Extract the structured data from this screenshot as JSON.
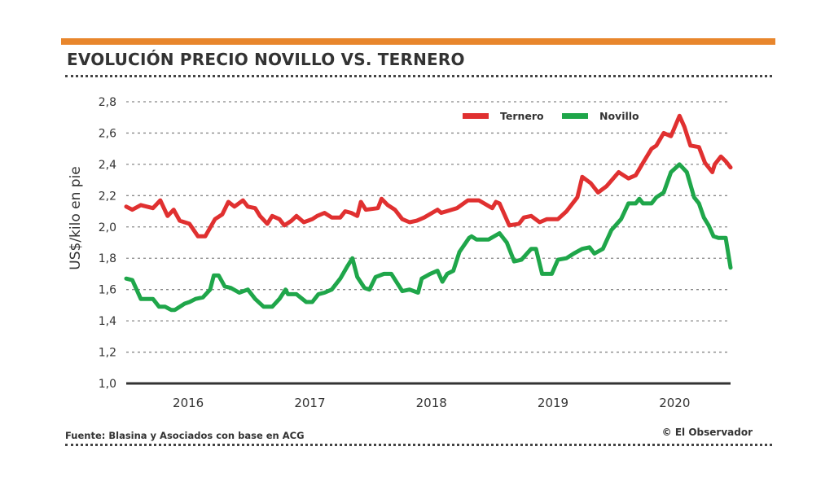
{
  "header": {
    "title": "EVOLUCIÓN PRECIO NOVILLO VS. TERNERO",
    "accent_color": "#e8862c"
  },
  "footer": {
    "source": "Fuente: Blasina y Asociados con base en ACG",
    "credit": "© El Observador"
  },
  "chart_data": {
    "type": "line",
    "title": "EVOLUCIÓN PRECIO NOVILLO VS. TERNERO",
    "xlabel": "",
    "ylabel": "US$/kilo en pie",
    "ylim": [
      1.0,
      2.8
    ],
    "xlim": [
      2015.99,
      2020.96
    ],
    "yticks": [
      "1,0",
      "1,2",
      "1,4",
      "1,6",
      "1,8",
      "2,0",
      "2,2",
      "2,4",
      "2,6",
      "2,8"
    ],
    "ytick_values": [
      1.0,
      1.2,
      1.4,
      1.6,
      1.8,
      2.0,
      2.2,
      2.4,
      2.6,
      2.8
    ],
    "xticks": [
      "2016",
      "2017",
      "2018",
      "2019",
      "2020"
    ],
    "xtick_values": [
      2016.5,
      2017.5,
      2018.5,
      2019.5,
      2020.5
    ],
    "grid": "horizontal dotted",
    "legend_position": "top-right",
    "series": [
      {
        "name": "Ternero",
        "color": "#e03030",
        "x": [
          2015.99,
          2016.04,
          2016.11,
          2016.21,
          2016.27,
          2016.33,
          2016.38,
          2016.43,
          2016.51,
          2016.58,
          2016.64,
          2016.72,
          2016.78,
          2016.83,
          2016.88,
          2016.95,
          2016.99,
          2017.05,
          2017.09,
          2017.15,
          2017.19,
          2017.25,
          2017.29,
          2017.35,
          2017.39,
          2017.45,
          2017.52,
          2017.56,
          2017.62,
          2017.68,
          2017.75,
          2017.79,
          2017.84,
          2017.89,
          2017.92,
          2017.96,
          2018.06,
          2018.09,
          2018.14,
          2018.2,
          2018.26,
          2018.32,
          2018.38,
          2018.44,
          2018.55,
          2018.58,
          2018.71,
          2018.8,
          2018.89,
          2019.0,
          2019.03,
          2019.06,
          2019.14,
          2019.22,
          2019.26,
          2019.32,
          2019.39,
          2019.45,
          2019.54,
          2019.61,
          2019.7,
          2019.74,
          2019.81,
          2019.87,
          2019.94,
          2020.04,
          2020.12,
          2020.18,
          2020.24,
          2020.31,
          2020.35,
          2020.41,
          2020.47,
          2020.54,
          2020.58,
          2020.63,
          2020.7,
          2020.75,
          2020.81,
          2020.83,
          2020.88,
          2020.92,
          2020.96
        ],
        "values": [
          2.13,
          2.11,
          2.14,
          2.12,
          2.17,
          2.07,
          2.11,
          2.04,
          2.02,
          1.94,
          1.94,
          2.05,
          2.08,
          2.16,
          2.13,
          2.17,
          2.13,
          2.12,
          2.07,
          2.02,
          2.07,
          2.05,
          2.01,
          2.04,
          2.07,
          2.03,
          2.05,
          2.07,
          2.09,
          2.06,
          2.06,
          2.1,
          2.09,
          2.07,
          2.16,
          2.11,
          2.12,
          2.18,
          2.14,
          2.11,
          2.05,
          2.03,
          2.04,
          2.06,
          2.11,
          2.09,
          2.12,
          2.17,
          2.17,
          2.12,
          2.16,
          2.15,
          2.01,
          2.02,
          2.06,
          2.07,
          2.03,
          2.05,
          2.05,
          2.1,
          2.19,
          2.32,
          2.28,
          2.22,
          2.26,
          2.35,
          2.31,
          2.33,
          2.41,
          2.5,
          2.52,
          2.6,
          2.58,
          2.71,
          2.64,
          2.52,
          2.51,
          2.41,
          2.35,
          2.4,
          2.45,
          2.42,
          2.38
        ]
      },
      {
        "name": "Novillo",
        "color": "#1fa64a",
        "x": [
          2015.99,
          2016.04,
          2016.11,
          2016.21,
          2016.26,
          2016.31,
          2016.36,
          2016.39,
          2016.47,
          2016.51,
          2016.56,
          2016.62,
          2016.68,
          2016.71,
          2016.75,
          2016.8,
          2016.85,
          2016.92,
          2016.99,
          2017.05,
          2017.12,
          2017.19,
          2017.25,
          2017.3,
          2017.32,
          2017.39,
          2017.47,
          2017.52,
          2017.57,
          2017.62,
          2017.68,
          2017.75,
          2017.81,
          2017.85,
          2017.89,
          2017.95,
          2017.99,
          2018.04,
          2018.11,
          2018.17,
          2018.26,
          2018.32,
          2018.39,
          2018.42,
          2018.49,
          2018.55,
          2018.59,
          2018.63,
          2018.68,
          2018.73,
          2018.81,
          2018.83,
          2018.87,
          2018.97,
          2019.06,
          2019.12,
          2019.18,
          2019.24,
          2019.32,
          2019.36,
          2019.41,
          2019.49,
          2019.54,
          2019.61,
          2019.67,
          2019.74,
          2019.8,
          2019.84,
          2019.91,
          2019.98,
          2020.06,
          2020.12,
          2020.18,
          2020.21,
          2020.24,
          2020.31,
          2020.35,
          2020.41,
          2020.47,
          2020.54,
          2020.6,
          2020.66,
          2020.7,
          2020.74,
          2020.78,
          2020.82,
          2020.86,
          2020.92,
          2020.96
        ],
        "values": [
          1.67,
          1.66,
          1.54,
          1.54,
          1.49,
          1.49,
          1.47,
          1.47,
          1.51,
          1.52,
          1.54,
          1.55,
          1.6,
          1.69,
          1.69,
          1.62,
          1.61,
          1.58,
          1.6,
          1.54,
          1.49,
          1.49,
          1.54,
          1.6,
          1.57,
          1.57,
          1.52,
          1.52,
          1.57,
          1.58,
          1.6,
          1.67,
          1.75,
          1.8,
          1.68,
          1.61,
          1.6,
          1.68,
          1.7,
          1.7,
          1.59,
          1.6,
          1.58,
          1.67,
          1.7,
          1.72,
          1.65,
          1.7,
          1.72,
          1.84,
          1.93,
          1.94,
          1.92,
          1.92,
          1.96,
          1.9,
          1.78,
          1.79,
          1.86,
          1.86,
          1.7,
          1.7,
          1.79,
          1.8,
          1.83,
          1.86,
          1.87,
          1.83,
          1.86,
          1.98,
          2.05,
          2.15,
          2.15,
          2.18,
          2.15,
          2.15,
          2.19,
          2.22,
          2.35,
          2.4,
          2.35,
          2.19,
          2.15,
          2.06,
          2.01,
          1.94,
          1.93,
          1.93,
          1.74
        ]
      }
    ]
  }
}
